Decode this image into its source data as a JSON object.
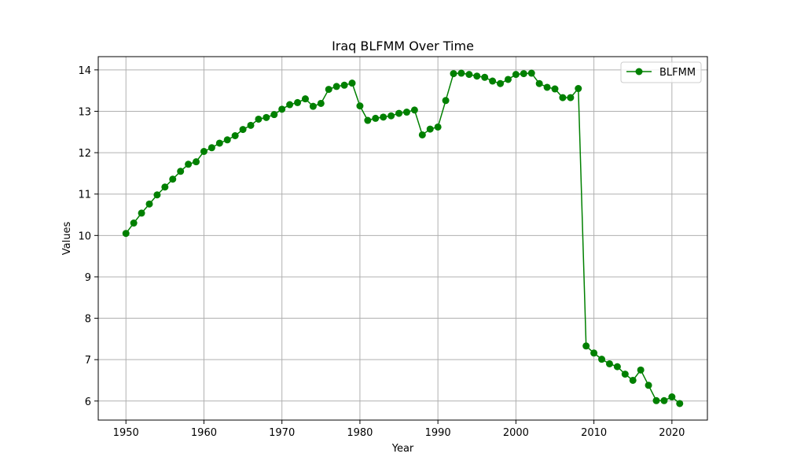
{
  "chart_data": {
    "type": "line",
    "title": "Iraq BLFMM Over Time",
    "xlabel": "Year",
    "ylabel": "Values",
    "xlim": [
      1946.45,
      2024.55
    ],
    "ylim": [
      5.54,
      14.32
    ],
    "x_ticks": [
      1950,
      1960,
      1970,
      1980,
      1990,
      2000,
      2010,
      2020
    ],
    "y_ticks": [
      6,
      7,
      8,
      9,
      10,
      11,
      12,
      13,
      14
    ],
    "grid": true,
    "legend_position": "top-right",
    "series": [
      {
        "name": "BLFMM",
        "color": "#008000",
        "marker": "circle",
        "x": [
          1950,
          1951,
          1952,
          1953,
          1954,
          1955,
          1956,
          1957,
          1958,
          1959,
          1960,
          1961,
          1962,
          1963,
          1964,
          1965,
          1966,
          1967,
          1968,
          1969,
          1970,
          1971,
          1972,
          1973,
          1974,
          1975,
          1976,
          1977,
          1978,
          1979,
          1980,
          1981,
          1982,
          1983,
          1984,
          1985,
          1986,
          1987,
          1988,
          1989,
          1990,
          1991,
          1992,
          1993,
          1994,
          1995,
          1996,
          1997,
          1998,
          1999,
          2000,
          2001,
          2002,
          2003,
          2004,
          2005,
          2006,
          2007,
          2008,
          2009,
          2010,
          2011,
          2012,
          2013,
          2014,
          2015,
          2016,
          2017,
          2018,
          2019,
          2020,
          2021
        ],
        "values": [
          10.05,
          10.3,
          10.54,
          10.76,
          10.98,
          11.17,
          11.36,
          11.55,
          11.72,
          11.78,
          12.03,
          12.12,
          12.23,
          12.31,
          12.41,
          12.56,
          12.66,
          12.81,
          12.85,
          12.92,
          13.05,
          13.16,
          13.21,
          13.3,
          13.12,
          13.19,
          13.53,
          13.6,
          13.63,
          13.68,
          13.13,
          12.78,
          12.83,
          12.86,
          12.89,
          12.95,
          12.98,
          13.03,
          12.43,
          12.57,
          12.62,
          13.26,
          13.91,
          13.92,
          13.89,
          13.85,
          13.82,
          13.73,
          13.67,
          13.77,
          13.89,
          13.91,
          13.92,
          13.67,
          13.58,
          13.54,
          13.33,
          13.33,
          13.55,
          7.33,
          7.16,
          7.01,
          6.9,
          6.83,
          6.65,
          6.5,
          6.75,
          6.38,
          6.01,
          6.01,
          6.1,
          5.94
        ]
      }
    ]
  }
}
